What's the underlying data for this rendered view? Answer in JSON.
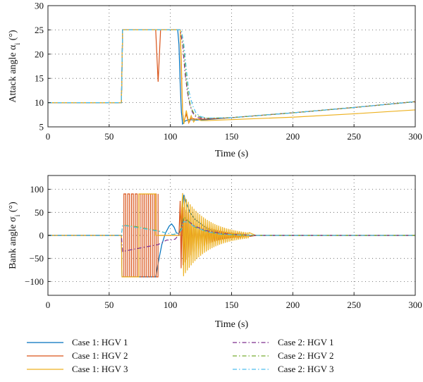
{
  "chart_data": [
    {
      "type": "line",
      "xlabel": "Time (s)",
      "ylabel": "Attack angle α",
      "ylabel_sub": "i",
      "ylabel_unit": " (°)",
      "xlim": [
        0,
        300
      ],
      "ylim": [
        5,
        30
      ],
      "xticks": [
        0,
        50,
        100,
        150,
        200,
        250,
        300
      ],
      "yticks": [
        5,
        10,
        15,
        20,
        25,
        30
      ],
      "grid": true,
      "series": [
        {
          "name": "Case 1: HGV 1",
          "color": "#0072BD",
          "dash": "",
          "points": [
            [
              0,
              10
            ],
            [
              60,
              10
            ],
            [
              61,
              25
            ],
            [
              106,
              25
            ],
            [
              107,
              22
            ],
            [
              108,
              14
            ],
            [
              109,
              8
            ],
            [
              110,
              5.6
            ],
            [
              112,
              6.2
            ],
            [
              115,
              6.5
            ],
            [
              120,
              6.4
            ],
            [
              130,
              6.5
            ],
            [
              150,
              6.9
            ],
            [
              200,
              7.9
            ],
            [
              250,
              9.0
            ],
            [
              300,
              10.2
            ]
          ]
        },
        {
          "name": "Case 1: HGV 2",
          "color": "#D95319",
          "dash": "",
          "points": [
            [
              0,
              10
            ],
            [
              60,
              10
            ],
            [
              61,
              25
            ],
            [
              88,
              25
            ],
            [
              90,
              14.3
            ],
            [
              92,
              25
            ],
            [
              108,
              25
            ],
            [
              109,
              16
            ],
            [
              110,
              8
            ],
            [
              111,
              6.1
            ],
            [
              113,
              7.6
            ],
            [
              115,
              5.8
            ],
            [
              117,
              6.8
            ],
            [
              120,
              6.6
            ],
            [
              130,
              6.6
            ],
            [
              150,
              6.9
            ],
            [
              200,
              7.9
            ],
            [
              250,
              9.0
            ],
            [
              300,
              10.2
            ]
          ]
        },
        {
          "name": "Case 1: HGV 3",
          "color": "#EDB120",
          "dash": "",
          "points": [
            [
              0,
              10
            ],
            [
              60,
              10
            ],
            [
              61,
              25
            ],
            [
              108,
              25
            ],
            [
              109,
              18
            ],
            [
              110,
              8
            ],
            [
              111,
              5.6
            ],
            [
              113,
              8.4
            ],
            [
              115,
              5.9
            ],
            [
              117,
              7.3
            ],
            [
              119,
              6.0
            ],
            [
              121,
              6.7
            ],
            [
              125,
              6.3
            ],
            [
              130,
              6.3
            ],
            [
              150,
              6.5
            ],
            [
              200,
              7.0
            ],
            [
              250,
              7.7
            ],
            [
              300,
              8.5
            ]
          ]
        },
        {
          "name": "Case 2: HGV 1",
          "color": "#7E2F8E",
          "dash": "6,3,1.5,3",
          "points": [
            [
              0,
              10
            ],
            [
              60,
              10
            ],
            [
              61,
              25
            ],
            [
              108,
              25
            ],
            [
              110,
              22
            ],
            [
              112,
              16
            ],
            [
              114,
              12
            ],
            [
              116,
              9.5
            ],
            [
              118,
              8
            ],
            [
              121,
              7
            ],
            [
              125,
              6.8
            ],
            [
              130,
              6.7
            ],
            [
              150,
              6.9
            ],
            [
              200,
              7.9
            ],
            [
              250,
              9.0
            ],
            [
              300,
              10.2
            ]
          ]
        },
        {
          "name": "Case 2: HGV 2",
          "color": "#77AC30",
          "dash": "6,3,1.5,3",
          "points": [
            [
              0,
              10
            ],
            [
              60,
              10
            ],
            [
              61,
              25
            ],
            [
              109,
              25
            ],
            [
              111,
              21
            ],
            [
              113,
              15
            ],
            [
              115,
              11
            ],
            [
              117,
              8.8
            ],
            [
              120,
              7.5
            ],
            [
              125,
              7.0
            ],
            [
              130,
              6.8
            ],
            [
              150,
              6.9
            ],
            [
              200,
              7.9
            ],
            [
              250,
              9.0
            ],
            [
              300,
              10.2
            ]
          ]
        },
        {
          "name": "Case 2: HGV 3",
          "color": "#4DBEEE",
          "dash": "6,3,1.5,3",
          "points": [
            [
              0,
              10
            ],
            [
              60,
              10
            ],
            [
              61,
              25
            ],
            [
              109,
              25
            ],
            [
              111,
              22
            ],
            [
              113,
              17
            ],
            [
              115,
              12.5
            ],
            [
              118,
              9.5
            ],
            [
              121,
              7.8
            ],
            [
              125,
              7.1
            ],
            [
              130,
              6.8
            ],
            [
              150,
              6.9
            ],
            [
              200,
              7.9
            ],
            [
              250,
              9.0
            ],
            [
              300,
              10.2
            ]
          ]
        }
      ]
    },
    {
      "type": "line",
      "xlabel": "Time (s)",
      "ylabel": "Bank angle σ",
      "ylabel_sub": "i",
      "ylabel_unit": " (°)",
      "xlim": [
        0,
        300
      ],
      "ylim": [
        -130,
        130
      ],
      "xticks": [
        0,
        50,
        100,
        150,
        200,
        250,
        300
      ],
      "yticks": [
        -100,
        -50,
        0,
        50,
        100
      ],
      "grid": true,
      "series": [
        {
          "name": "Case 1: HGV 1",
          "color": "#0072BD",
          "dash": "",
          "points": [
            [
              0,
              0
            ],
            [
              60,
              0
            ],
            [
              60.5,
              -90
            ],
            [
              88,
              -90
            ],
            [
              90,
              -60
            ],
            [
              93,
              -20
            ],
            [
              96,
              5
            ],
            [
              99,
              20
            ],
            [
              101,
              25
            ],
            [
              103,
              18
            ],
            [
              105,
              5
            ],
            [
              107,
              4
            ],
            [
              108,
              10
            ],
            [
              109,
              25
            ],
            [
              110,
              60
            ],
            [
              111,
              88
            ],
            [
              113,
              70
            ],
            [
              116,
              50
            ],
            [
              120,
              35
            ],
            [
              130,
              15
            ],
            [
              140,
              5
            ],
            [
              150,
              1
            ],
            [
              165,
              0
            ],
            [
              300,
              0
            ]
          ]
        },
        {
          "name": "Case 1: HGV 2",
          "color": "#D95319",
          "dash": "",
          "osc": {
            "t0": 60.5,
            "t1": 90,
            "period": 3.1,
            "amp": 90
          },
          "points": [
            [
              0,
              0
            ],
            [
              60,
              0
            ],
            [
              300,
              0
            ]
          ]
        },
        {
          "name": "Case 1: HGV 3",
          "color": "#EDB120",
          "dash": "",
          "osc": {
            "t0": 60.5,
            "t1": 88,
            "period": 27.5,
            "amp": 90
          },
          "decay": {
            "t0": 110,
            "t1": 165,
            "period": 1.55,
            "amp0": 92,
            "tau": 20
          },
          "points": [
            [
              0,
              0
            ],
            [
              60,
              0
            ],
            [
              300,
              0
            ]
          ]
        },
        {
          "name": "Case 2: HGV 1",
          "color": "#7E2F8E",
          "dash": "6,3,1.5,3",
          "points": [
            [
              0,
              0
            ],
            [
              60,
              0
            ],
            [
              61,
              -35
            ],
            [
              70,
              -30
            ],
            [
              80,
              -25
            ],
            [
              90,
              -20
            ],
            [
              97,
              -10
            ],
            [
              100,
              -10
            ],
            [
              104,
              -8
            ],
            [
              107,
              2
            ],
            [
              109,
              20
            ],
            [
              111,
              35
            ],
            [
              115,
              30
            ],
            [
              120,
              20
            ],
            [
              130,
              10
            ],
            [
              140,
              5
            ],
            [
              150,
              2
            ],
            [
              170,
              0
            ],
            [
              300,
              0
            ]
          ]
        },
        {
          "name": "Case 2: HGV 2",
          "color": "#77AC30",
          "dash": "6,3,1.5,3",
          "points": [
            [
              0,
              0
            ],
            [
              60,
              0
            ],
            [
              61,
              22
            ],
            [
              70,
              20
            ],
            [
              80,
              15
            ],
            [
              90,
              10
            ],
            [
              97,
              5
            ],
            [
              102,
              2
            ],
            [
              106,
              4
            ],
            [
              109,
              15
            ],
            [
              111,
              40
            ],
            [
              115,
              30
            ],
            [
              120,
              18
            ],
            [
              130,
              8
            ],
            [
              140,
              3
            ],
            [
              155,
              1
            ],
            [
              170,
              0
            ],
            [
              300,
              0
            ]
          ]
        },
        {
          "name": "Case 2: HGV 3",
          "color": "#4DBEEE",
          "dash": "6,3,1.5,3",
          "points": [
            [
              0,
              0
            ],
            [
              60,
              0
            ],
            [
              61,
              22
            ],
            [
              70,
              18
            ],
            [
              80,
              14
            ],
            [
              90,
              9
            ],
            [
              97,
              5
            ],
            [
              102,
              2
            ],
            [
              106,
              4
            ],
            [
              109,
              12
            ],
            [
              111,
              30
            ],
            [
              115,
              28
            ],
            [
              120,
              18
            ],
            [
              130,
              8
            ],
            [
              140,
              3
            ],
            [
              155,
              1
            ],
            [
              170,
              0
            ],
            [
              300,
              0
            ]
          ]
        }
      ]
    }
  ],
  "legend": {
    "placement": "bottom",
    "entries": [
      {
        "label": "Case 1: HGV 1",
        "color": "#0072BD",
        "dash": ""
      },
      {
        "label": "Case 2: HGV 1",
        "color": "#7E2F8E",
        "dash": "6,3,1.5,3"
      },
      {
        "label": "Case 1: HGV 2",
        "color": "#D95319",
        "dash": ""
      },
      {
        "label": "Case 2: HGV 2",
        "color": "#77AC30",
        "dash": "6,3,1.5,3"
      },
      {
        "label": "Case 1: HGV 3",
        "color": "#EDB120",
        "dash": ""
      },
      {
        "label": "Case 2: HGV 3",
        "color": "#4DBEEE",
        "dash": "6,3,1.5,3"
      }
    ]
  }
}
